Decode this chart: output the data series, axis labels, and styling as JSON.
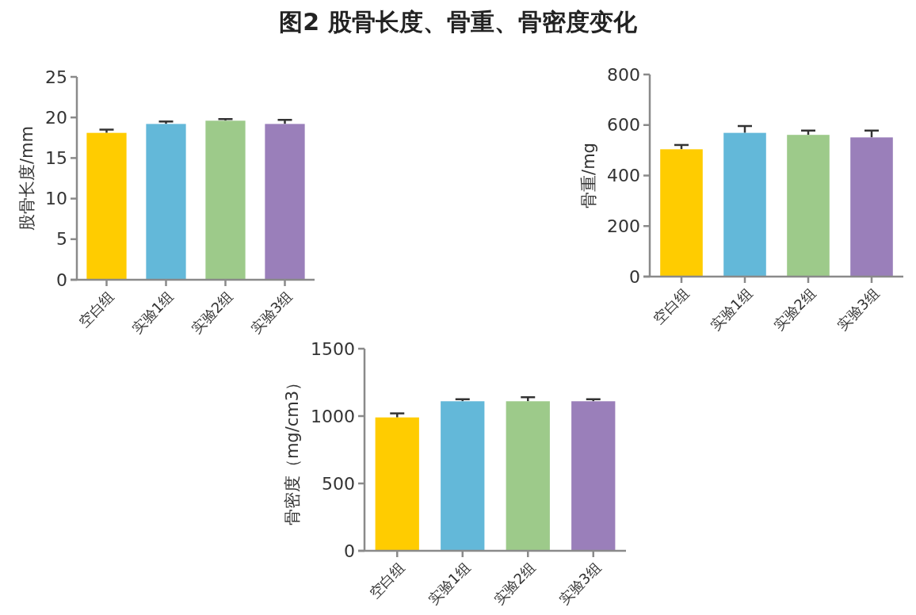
{
  "chart_data": [
    {
      "type": "bar",
      "title": "图2 股骨长度、骨重、骨密度变化",
      "ylabel": "股骨长度/mm",
      "categories": [
        "空白组",
        "实验1组",
        "实验2组",
        "实验3组"
      ],
      "values": [
        18.1,
        19.2,
        19.6,
        19.2
      ],
      "errors": [
        0.4,
        0.3,
        0.2,
        0.5
      ],
      "colors": [
        "#ffcc00",
        "#63b8d9",
        "#9dca8a",
        "#9a7fba"
      ],
      "ylim": [
        0,
        25
      ],
      "yticks": [
        0,
        5,
        10,
        15,
        20,
        25
      ]
    },
    {
      "type": "bar",
      "ylabel": "骨重/mg",
      "categories": [
        "空白组",
        "实验1组",
        "实验2组",
        "实验3组"
      ],
      "values": [
        504,
        569,
        561,
        551
      ],
      "errors": [
        17,
        27,
        17,
        27
      ],
      "colors": [
        "#ffcc00",
        "#63b8d9",
        "#9dca8a",
        "#9a7fba"
      ],
      "ylim": [
        0,
        800
      ],
      "yticks": [
        0,
        200,
        400,
        600,
        800
      ]
    },
    {
      "type": "bar",
      "ylabel": "骨密度（mg/cm3）",
      "categories": [
        "空白组",
        "实验1组",
        "实验2组",
        "实验3组"
      ],
      "values": [
        990,
        1110,
        1110,
        1110
      ],
      "errors": [
        30,
        15,
        30,
        15
      ],
      "colors": [
        "#ffcc00",
        "#63b8d9",
        "#9dca8a",
        "#9a7fba"
      ],
      "ylim": [
        0,
        1500
      ],
      "yticks": [
        0,
        500,
        1000,
        1500
      ]
    }
  ]
}
